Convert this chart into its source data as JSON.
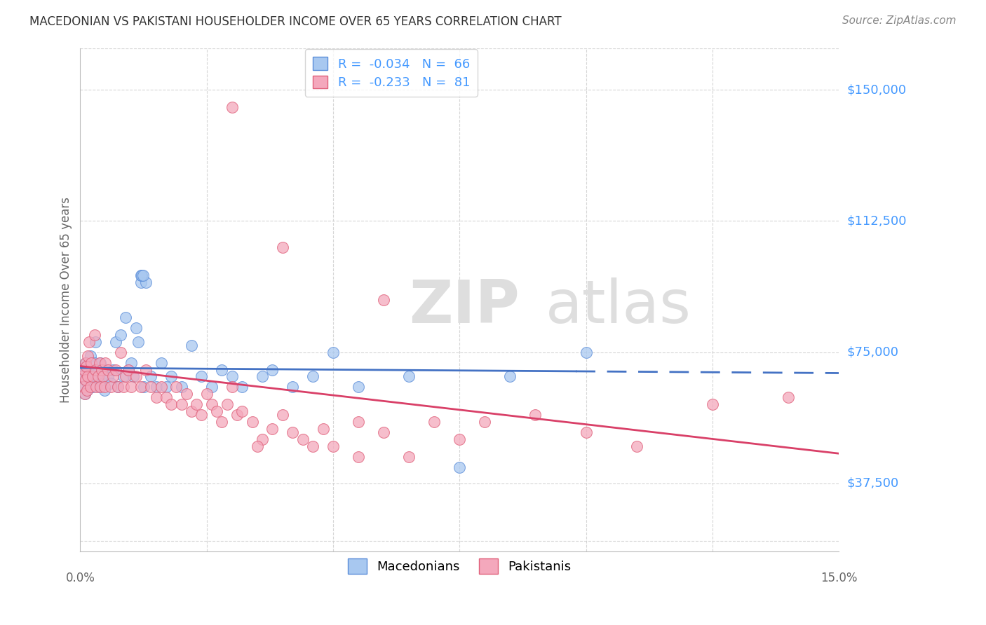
{
  "title": "MACEDONIAN VS PAKISTANI HOUSEHOLDER INCOME OVER 65 YEARS CORRELATION CHART",
  "source": "Source: ZipAtlas.com",
  "ylabel": "Householder Income Over 65 years",
  "xlim": [
    0.0,
    15.0
  ],
  "ylim": [
    18000,
    162000
  ],
  "yticks": [
    37500,
    75000,
    112500,
    150000
  ],
  "ytick_labels": [
    "$37,500",
    "$75,000",
    "$112,500",
    "$150,000"
  ],
  "r_macedonian": -0.034,
  "n_macedonian": 66,
  "r_pakistani": -0.233,
  "n_pakistani": 81,
  "color_macedonian": "#A8C8F0",
  "color_pakistani": "#F4A8BC",
  "edge_color_macedonian": "#5B8DD9",
  "edge_color_pakistani": "#E0607A",
  "line_color_macedonian": "#4472C4",
  "line_color_pakistani": "#D94068",
  "background_color": "#FFFFFF",
  "grid_color": "#CCCCCC",
  "watermark_color": "#DEDEDE",
  "title_color": "#333333",
  "source_color": "#888888",
  "axis_label_color": "#666666",
  "ytick_color": "#4499FF",
  "xtick_color": "#666666",
  "macedonian_x": [
    0.05,
    0.07,
    0.08,
    0.09,
    0.1,
    0.1,
    0.11,
    0.12,
    0.13,
    0.14,
    0.15,
    0.18,
    0.2,
    0.22,
    0.25,
    0.28,
    0.3,
    0.32,
    0.35,
    0.38,
    0.4,
    0.42,
    0.45,
    0.48,
    0.5,
    0.55,
    0.6,
    0.65,
    0.7,
    0.75,
    0.8,
    0.85,
    0.9,
    0.95,
    1.0,
    1.05,
    1.1,
    1.15,
    1.2,
    1.25,
    1.3,
    1.4,
    1.5,
    1.6,
    1.7,
    1.8,
    2.0,
    2.2,
    2.4,
    2.6,
    2.8,
    3.0,
    3.2,
    3.6,
    3.8,
    4.2,
    4.6,
    5.0,
    5.5,
    6.5,
    7.5,
    8.5,
    10.0,
    1.2,
    1.22,
    1.24
  ],
  "macedonian_y": [
    68000,
    65000,
    70000,
    63000,
    72000,
    67000,
    69000,
    71000,
    64000,
    68000,
    66000,
    70000,
    74000,
    68000,
    65000,
    72000,
    78000,
    68000,
    70000,
    65000,
    72000,
    68000,
    66000,
    64000,
    70000,
    68000,
    66000,
    70000,
    78000,
    65000,
    80000,
    68000,
    85000,
    70000,
    72000,
    68000,
    82000,
    78000,
    95000,
    65000,
    95000,
    68000,
    65000,
    72000,
    65000,
    68000,
    65000,
    77000,
    68000,
    65000,
    70000,
    68000,
    65000,
    68000,
    70000,
    65000,
    68000,
    75000,
    65000,
    68000,
    42000,
    68000,
    75000,
    97000,
    97000,
    97000
  ],
  "pakistani_x": [
    0.05,
    0.07,
    0.08,
    0.09,
    0.1,
    0.11,
    0.12,
    0.13,
    0.14,
    0.15,
    0.18,
    0.2,
    0.22,
    0.25,
    0.28,
    0.3,
    0.32,
    0.35,
    0.38,
    0.4,
    0.42,
    0.45,
    0.48,
    0.5,
    0.55,
    0.6,
    0.65,
    0.7,
    0.75,
    0.8,
    0.85,
    0.9,
    0.95,
    1.0,
    1.1,
    1.2,
    1.3,
    1.4,
    1.5,
    1.6,
    1.7,
    1.8,
    1.9,
    2.0,
    2.1,
    2.2,
    2.3,
    2.4,
    2.5,
    2.6,
    2.7,
    2.8,
    2.9,
    3.0,
    3.1,
    3.2,
    3.4,
    3.6,
    3.8,
    4.0,
    4.2,
    4.4,
    4.6,
    4.8,
    5.0,
    5.5,
    6.0,
    6.5,
    7.0,
    7.5,
    8.0,
    9.0,
    10.0,
    11.0,
    12.5,
    14.0,
    3.5,
    5.5,
    3.0,
    4.0,
    6.0
  ],
  "pakistani_y": [
    68000,
    65000,
    70000,
    63000,
    72000,
    67000,
    71000,
    64000,
    68000,
    74000,
    78000,
    65000,
    72000,
    68000,
    80000,
    70000,
    65000,
    68000,
    72000,
    65000,
    70000,
    68000,
    65000,
    72000,
    70000,
    65000,
    68000,
    70000,
    65000,
    75000,
    65000,
    68000,
    70000,
    65000,
    68000,
    65000,
    70000,
    65000,
    62000,
    65000,
    62000,
    60000,
    65000,
    60000,
    63000,
    58000,
    60000,
    57000,
    63000,
    60000,
    58000,
    55000,
    60000,
    65000,
    57000,
    58000,
    55000,
    50000,
    53000,
    57000,
    52000,
    50000,
    48000,
    53000,
    48000,
    55000,
    52000,
    45000,
    55000,
    50000,
    55000,
    57000,
    52000,
    48000,
    60000,
    62000,
    48000,
    45000,
    145000,
    105000,
    90000
  ],
  "mac_trend_x0": 0.0,
  "mac_trend_x1": 15.0,
  "mac_trend_y0": 70500,
  "mac_trend_y1": 69000,
  "mac_dash_start": 9.8,
  "pak_trend_x0": 0.0,
  "pak_trend_x1": 15.0,
  "pak_trend_y0": 71000,
  "pak_trend_y1": 46000
}
